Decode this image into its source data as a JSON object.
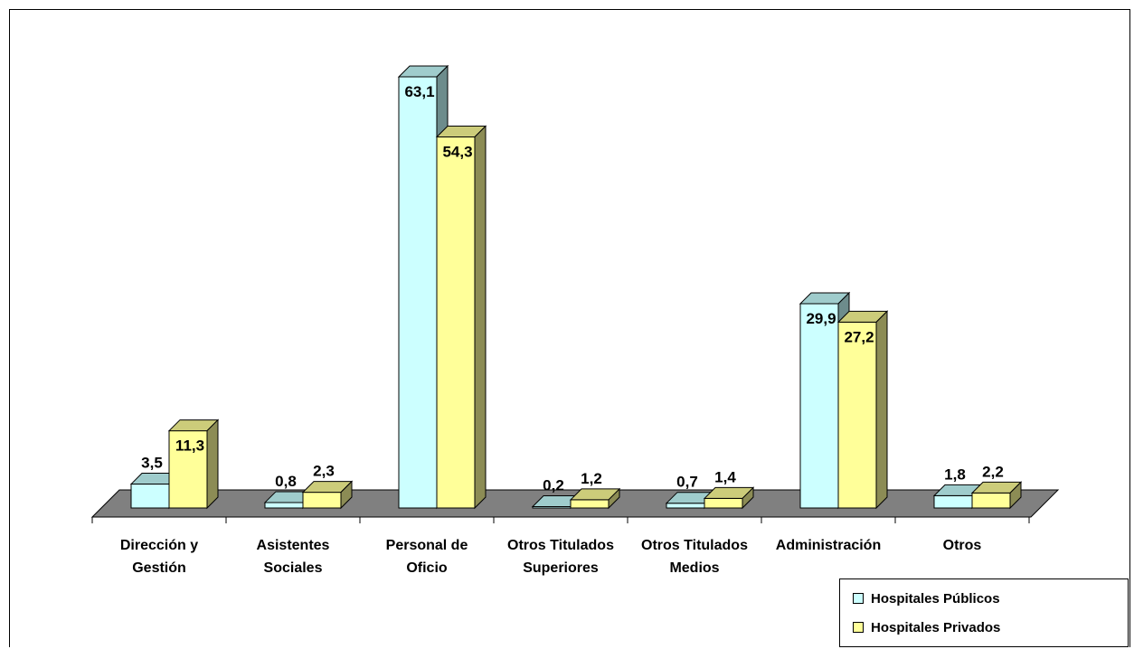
{
  "chart_data": {
    "type": "bar",
    "categories": [
      [
        "Dirección y",
        "Gestión"
      ],
      [
        "Asistentes",
        "Sociales"
      ],
      [
        "Personal de",
        "Oficio"
      ],
      [
        "Otros Titulados",
        "Superiores"
      ],
      [
        "Otros Titulados",
        "Medios"
      ],
      [
        "Administración"
      ],
      [
        "Otros"
      ]
    ],
    "series": [
      {
        "name": "Hospitales Públicos",
        "values": [
          3.5,
          0.8,
          63.1,
          0.2,
          0.7,
          29.9,
          1.8
        ],
        "labels": [
          "3,5",
          "0,8",
          "63,1",
          "0,2",
          "0,7",
          "29,9",
          "1,8"
        ]
      },
      {
        "name": "Hospitales Privados",
        "values": [
          11.3,
          2.3,
          54.3,
          1.2,
          1.4,
          27.2,
          2.2
        ],
        "labels": [
          "11,3",
          "2,3",
          "54,3",
          "1,2",
          "1,4",
          "27,2",
          "2,2"
        ]
      }
    ],
    "colors": {
      "series_front": [
        "#ccffff",
        "#ffff99"
      ],
      "series_top": [
        "#9fcccc",
        "#cccc7a"
      ],
      "series_side": [
        "#6d8c8c",
        "#8c8c55"
      ],
      "floor": "#808080"
    },
    "title": "",
    "xlabel": "",
    "ylabel": "",
    "ylim": [
      0,
      65
    ],
    "grid": false,
    "style": "3d-clustered-column",
    "legend_position": "bottom-right"
  }
}
